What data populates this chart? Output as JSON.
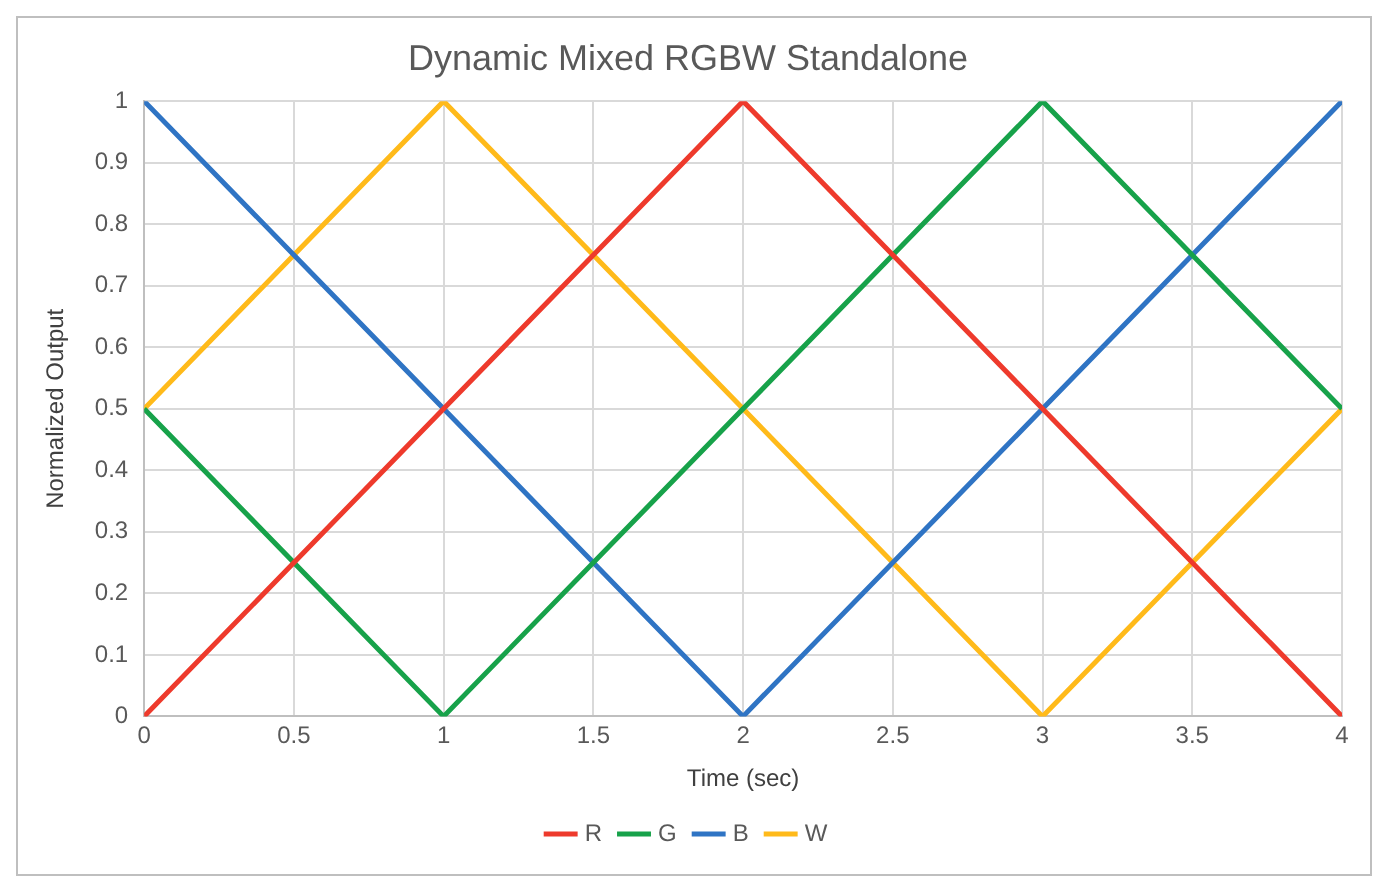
{
  "chart_data": {
    "type": "line",
    "title": "Dynamic Mixed RGBW Standalone",
    "xlabel": "Time (sec)",
    "ylabel": "Normalized Output",
    "x": [
      0,
      1,
      2,
      3,
      4
    ],
    "series": [
      {
        "name": "R",
        "color": "#ee3a2c",
        "values": [
          0,
          0.5,
          1,
          0.5,
          0
        ]
      },
      {
        "name": "G",
        "color": "#17a24a",
        "values": [
          0.5,
          0,
          0.5,
          1,
          0.5
        ]
      },
      {
        "name": "B",
        "color": "#2f74c4",
        "values": [
          1,
          0.5,
          0,
          0.5,
          1
        ]
      },
      {
        "name": "W",
        "color": "#ffba1a",
        "values": [
          0.5,
          1,
          0.5,
          0,
          0.5
        ]
      }
    ],
    "xlim": [
      0,
      4
    ],
    "xticks": [
      0,
      0.5,
      1,
      1.5,
      2,
      2.5,
      3,
      3.5,
      4
    ],
    "ylim": [
      0,
      1
    ],
    "yticks": [
      0,
      0.1,
      0.2,
      0.3,
      0.4,
      0.5,
      0.6,
      0.7,
      0.8,
      0.9,
      1
    ],
    "grid": true,
    "legend": "bottom",
    "marker": "none",
    "line_style": "solid"
  }
}
